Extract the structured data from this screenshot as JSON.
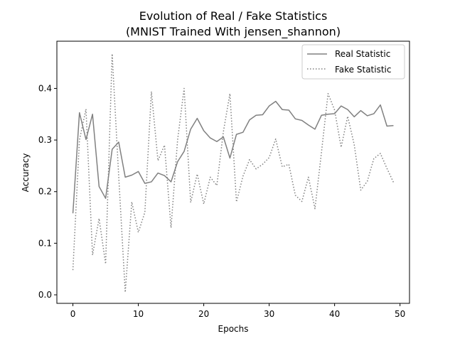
{
  "chart_data": {
    "type": "line",
    "title": "Evolution of Real / Fake Statistics",
    "subtitle": "(MNIST Trained With jensen_shannon)",
    "xlabel": "Epochs",
    "ylabel": "Accuracy",
    "xlim": [
      -2.45,
      51.45
    ],
    "ylim": [
      -0.0165,
      0.4915
    ],
    "xticks": [
      0,
      10,
      20,
      30,
      40,
      50
    ],
    "yticks": [
      0.0,
      0.1,
      0.2,
      0.3,
      0.4
    ],
    "xtick_labels": [
      "0",
      "10",
      "20",
      "30",
      "40",
      "50"
    ],
    "ytick_labels": [
      "0.0",
      "0.1",
      "0.2",
      "0.3",
      "0.4"
    ],
    "grid": false,
    "legend_position": "upper right",
    "x": [
      0,
      1,
      2,
      3,
      4,
      5,
      6,
      7,
      8,
      9,
      10,
      11,
      12,
      13,
      14,
      15,
      16,
      17,
      18,
      19,
      20,
      21,
      22,
      23,
      24,
      25,
      26,
      27,
      28,
      29,
      30,
      31,
      32,
      33,
      34,
      35,
      36,
      37,
      38,
      39,
      40,
      41,
      42,
      43,
      44,
      45,
      46,
      47,
      48,
      49
    ],
    "series": [
      {
        "name": "Real Statistic",
        "style": "solid",
        "color": "#808080",
        "values": [
          0.158,
          0.353,
          0.301,
          0.35,
          0.21,
          0.187,
          0.282,
          0.296,
          0.228,
          0.232,
          0.239,
          0.216,
          0.219,
          0.236,
          0.231,
          0.219,
          0.258,
          0.278,
          0.321,
          0.342,
          0.318,
          0.304,
          0.297,
          0.306,
          0.265,
          0.311,
          0.315,
          0.339,
          0.348,
          0.349,
          0.366,
          0.375,
          0.359,
          0.358,
          0.341,
          0.338,
          0.329,
          0.321,
          0.348,
          0.35,
          0.351,
          0.366,
          0.359,
          0.345,
          0.357,
          0.347,
          0.351,
          0.368,
          0.327,
          0.328
        ]
      },
      {
        "name": "Fake Statistic",
        "style": "dotted",
        "color": "#808080",
        "values": [
          0.048,
          0.3,
          0.36,
          0.077,
          0.148,
          0.06,
          0.467,
          0.23,
          0.005,
          0.18,
          0.121,
          0.16,
          0.394,
          0.26,
          0.29,
          0.13,
          0.3,
          0.4,
          0.179,
          0.234,
          0.176,
          0.228,
          0.212,
          0.316,
          0.39,
          0.18,
          0.23,
          0.262,
          0.244,
          0.253,
          0.266,
          0.302,
          0.248,
          0.253,
          0.193,
          0.181,
          0.228,
          0.167,
          0.277,
          0.39,
          0.358,
          0.286,
          0.346,
          0.291,
          0.203,
          0.22,
          0.264,
          0.274,
          0.245,
          0.218
        ]
      }
    ]
  }
}
